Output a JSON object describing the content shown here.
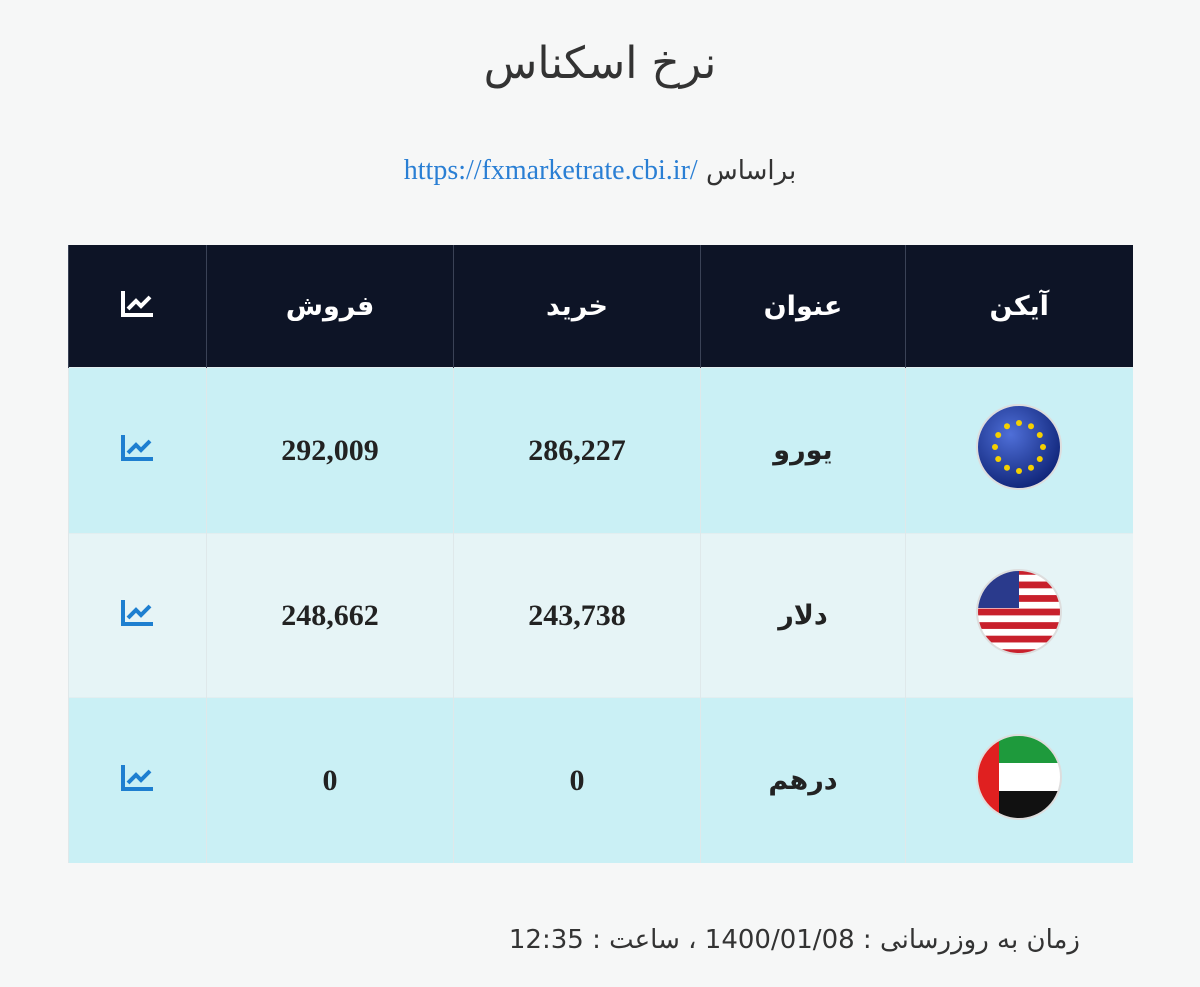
{
  "header": {
    "title": "نرخ اسکناس",
    "source_prefix": "براساس",
    "source_link": "https://fxmarketrate.cbi.ir/"
  },
  "table": {
    "columns": [
      "آیکن",
      "عنوان",
      "خرید",
      "فروش"
    ],
    "rows": [
      [
        "یورو",
        "286,227",
        "292,009"
      ],
      [
        "دلار",
        "243,738",
        "248,662"
      ],
      [
        "درهم",
        "0",
        "0"
      ]
    ]
  },
  "footer": {
    "updated": "زمان به روزرسانی : 1400/01/08 ، ساعت : 12:35"
  }
}
